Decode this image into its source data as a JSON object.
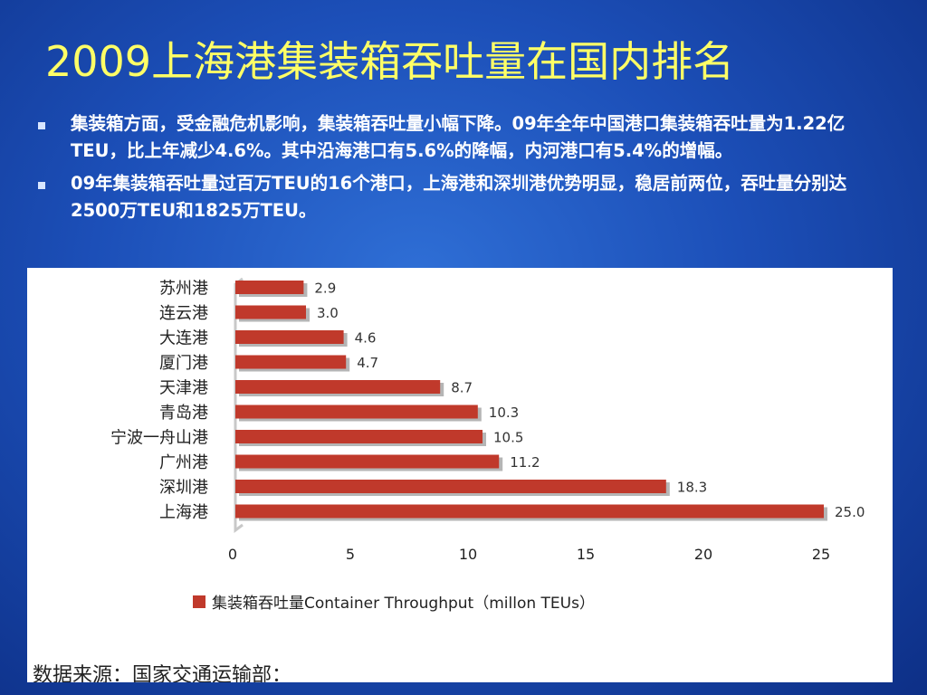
{
  "slide": {
    "title": "2009上海港集装箱吞吐量在国内排名",
    "bullets": [
      "集装箱方面，受金融危机影响，集装箱吞吐量小幅下降。09年全年中国港口集装箱吞吐量为1.22亿TEU，比上年减少4.6%。其中沿海港口有5.6%的降幅，内河港口有5.4%的增幅。",
      "09年集装箱吞吐量过百万TEU的16个港口，上海港和深圳港优势明显，稳居前两位，吞吐量分别达2500万TEU和1825万TEU。"
    ],
    "source_note": "数据来源：国家交通运输部："
  },
  "chart_data": {
    "type": "bar",
    "orientation": "horizontal",
    "categories": [
      "苏州港",
      "连云港",
      "大连港",
      "厦门港",
      "天津港",
      "青岛港",
      "宁波一舟山港",
      "广州港",
      "深圳港",
      "上海港"
    ],
    "series": [
      {
        "name": "集装箱吞吐量Container Throughput（millon TEUs）",
        "values": [
          2.9,
          3.0,
          4.6,
          4.7,
          8.7,
          10.3,
          10.5,
          11.2,
          18.3,
          25.0
        ]
      }
    ],
    "value_labels": [
      "2.9",
      "3.0",
      "4.6",
      "4.7",
      "8.7",
      "10.3",
      "10.5",
      "11.2",
      "18.3",
      "25.0"
    ],
    "x_ticks": [
      "0",
      "5",
      "10",
      "15",
      "20",
      "25"
    ],
    "xlim": [
      0,
      25
    ],
    "bar_color": "#c0392b",
    "legend_position": "bottom",
    "grid": false
  }
}
